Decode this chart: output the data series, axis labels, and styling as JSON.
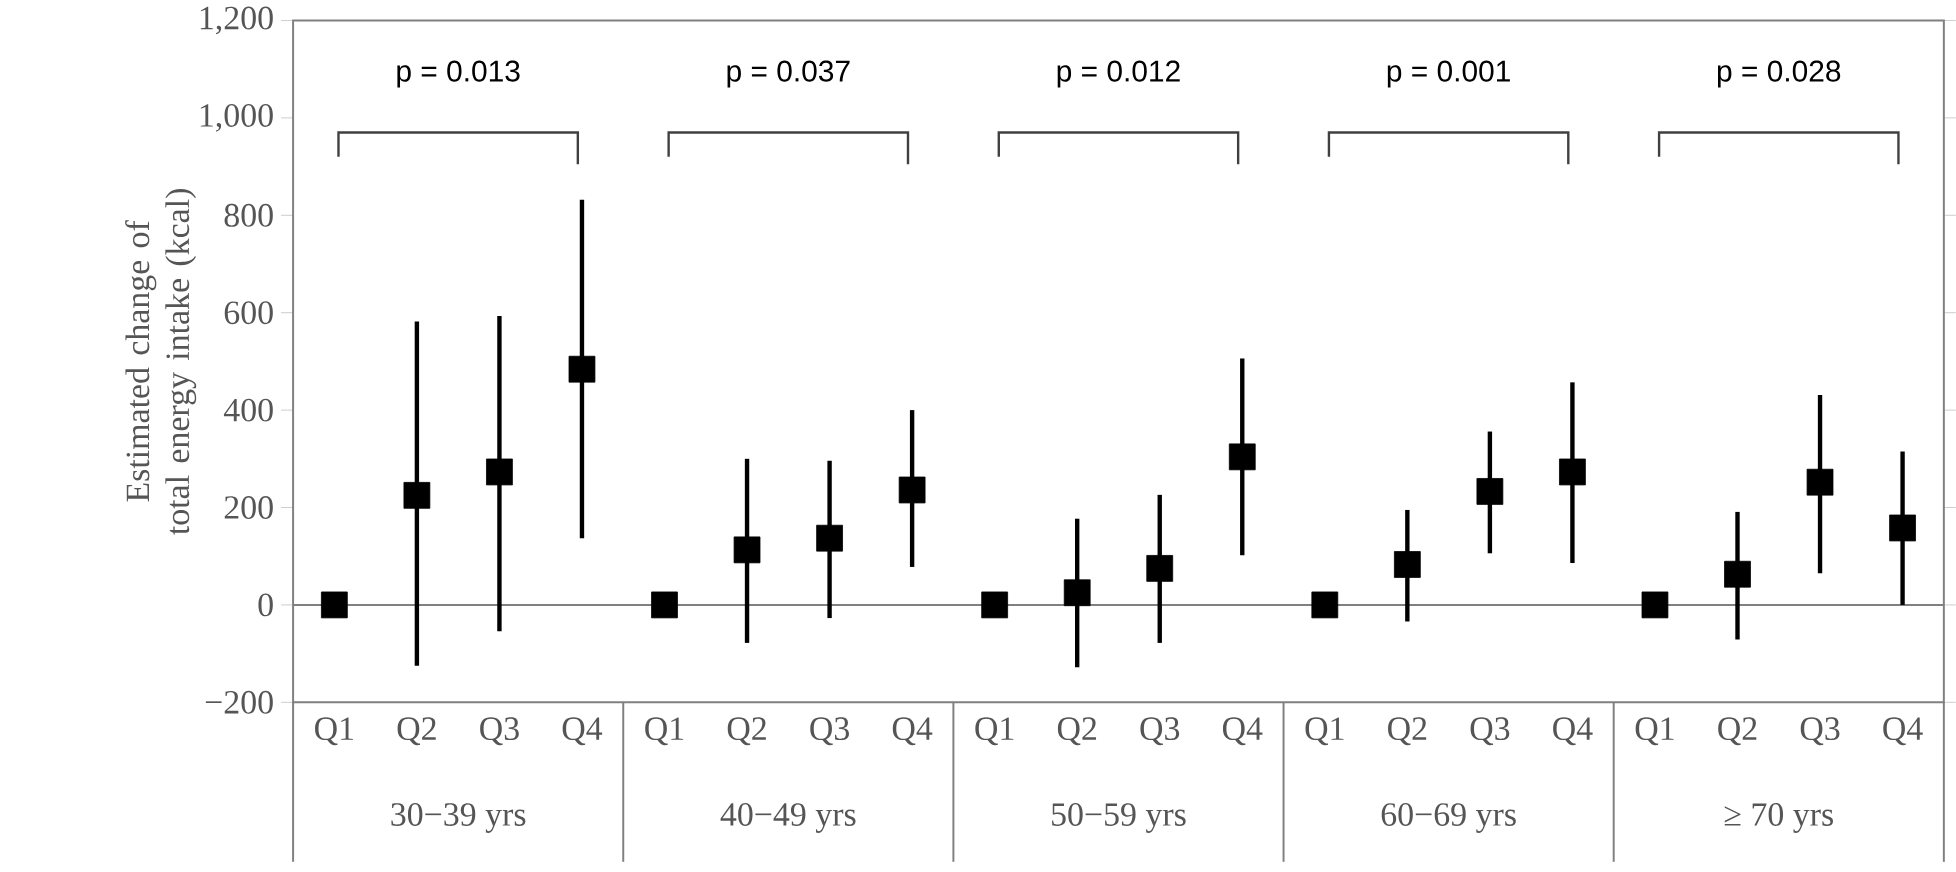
{
  "chart_data": {
    "type": "scatter",
    "ylabel": "Estimated change of total energy intake (kcal)",
    "categories": [
      "Q1",
      "Q2",
      "Q3",
      "Q4",
      "Q1",
      "Q2",
      "Q3",
      "Q4",
      "Q1",
      "Q2",
      "Q3",
      "Q4",
      "Q1",
      "Q2",
      "Q3",
      "Q4",
      "Q1",
      "Q2",
      "Q3",
      "Q4"
    ],
    "series": [
      {
        "color": "#000000",
        "values": [
          0,
          225,
          273,
          484,
          0,
          113,
          137,
          236,
          0,
          25,
          75,
          304,
          0,
          83,
          233,
          273,
          0,
          63,
          252,
          158
        ],
        "errors": [
          null,
          [
            -125,
            582
          ],
          [
            -54,
            593
          ],
          [
            137,
            832
          ],
          null,
          [
            -78,
            300
          ],
          [
            -27,
            296
          ],
          [
            78,
            400
          ],
          null,
          [
            -128,
            177
          ],
          [
            -78,
            226
          ],
          [
            102,
            506
          ],
          null,
          [
            -34,
            195
          ],
          [
            106,
            356
          ],
          [
            86,
            457
          ],
          null,
          [
            -71,
            191
          ],
          [
            65,
            431
          ],
          [
            0,
            315
          ]
        ]
      }
    ],
    "marker": "square",
    "ylim": [
      -200,
      1200
    ],
    "yticks": [
      {
        "value": -200,
        "label": "−200"
      },
      0,
      200,
      400,
      600,
      800,
      {
        "value": 1000,
        "label": "1,000"
      },
      {
        "value": 1200,
        "label": "1,200"
      }
    ],
    "ref_lines": [
      {
        "axis": "y",
        "value": 0,
        "color": "#808080"
      }
    ],
    "annotations": [
      "p = 0.013",
      "p = 0.037",
      "p = 0.012",
      "p = 0.001",
      "p = 0.028",
      "30−39 yrs",
      "40−49 yrs",
      "50−59 yrs",
      "60−69 yrs",
      "≥ 70 yrs"
    ]
  }
}
